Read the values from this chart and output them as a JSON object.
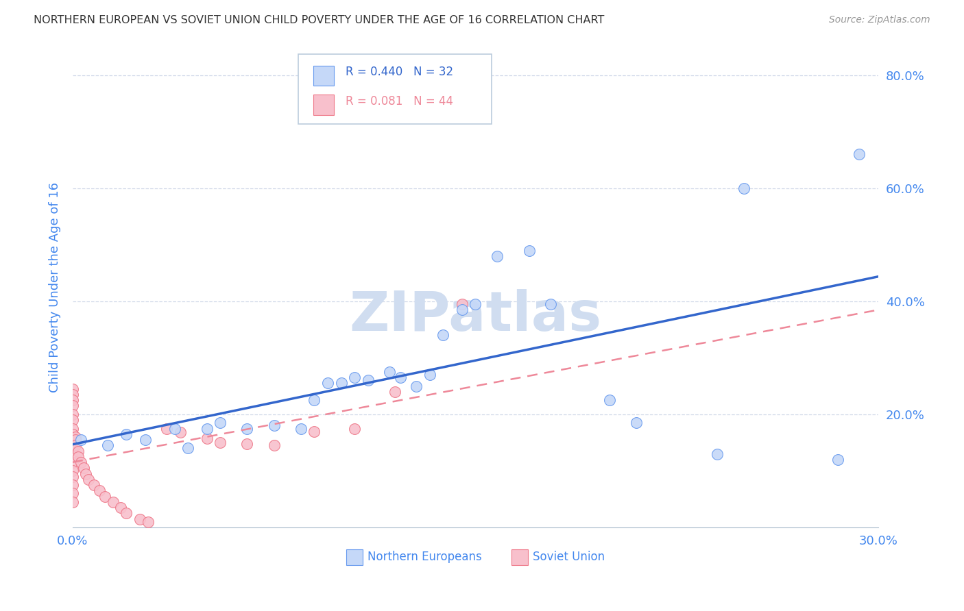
{
  "title": "NORTHERN EUROPEAN VS SOVIET UNION CHILD POVERTY UNDER THE AGE OF 16 CORRELATION CHART",
  "source": "Source: ZipAtlas.com",
  "ylabel": "Child Poverty Under the Age of 16",
  "xlim": [
    0.0,
    0.3
  ],
  "ylim": [
    0.0,
    0.85
  ],
  "xticks": [
    0.0,
    0.3
  ],
  "yticks": [
    0.2,
    0.4,
    0.6,
    0.8
  ],
  "background_color": "#ffffff",
  "grid_color": "#d0d8e8",
  "title_color": "#333333",
  "tick_color": "#4488ee",
  "northern_european_x": [
    0.003,
    0.013,
    0.02,
    0.027,
    0.038,
    0.043,
    0.05,
    0.055,
    0.065,
    0.075,
    0.085,
    0.09,
    0.095,
    0.1,
    0.105,
    0.11,
    0.118,
    0.122,
    0.128,
    0.133,
    0.138,
    0.145,
    0.15,
    0.158,
    0.17,
    0.178,
    0.2,
    0.21,
    0.24,
    0.25,
    0.285,
    0.293
  ],
  "northern_european_y": [
    0.155,
    0.145,
    0.165,
    0.155,
    0.175,
    0.14,
    0.175,
    0.185,
    0.175,
    0.18,
    0.175,
    0.225,
    0.255,
    0.255,
    0.265,
    0.26,
    0.275,
    0.265,
    0.25,
    0.27,
    0.34,
    0.385,
    0.395,
    0.48,
    0.49,
    0.395,
    0.225,
    0.185,
    0.13,
    0.6,
    0.12,
    0.66
  ],
  "soviet_union_x": [
    0.0,
    0.0,
    0.0,
    0.0,
    0.0,
    0.0,
    0.0,
    0.0,
    0.0,
    0.0,
    0.0,
    0.0,
    0.0,
    0.0,
    0.0,
    0.0,
    0.0,
    0.001,
    0.001,
    0.001,
    0.002,
    0.002,
    0.003,
    0.004,
    0.005,
    0.006,
    0.008,
    0.01,
    0.012,
    0.015,
    0.018,
    0.02,
    0.025,
    0.028,
    0.035,
    0.04,
    0.05,
    0.055,
    0.065,
    0.075,
    0.09,
    0.105,
    0.12,
    0.145
  ],
  "soviet_union_y": [
    0.245,
    0.235,
    0.225,
    0.215,
    0.2,
    0.19,
    0.175,
    0.165,
    0.15,
    0.14,
    0.125,
    0.115,
    0.1,
    0.09,
    0.075,
    0.06,
    0.045,
    0.16,
    0.155,
    0.145,
    0.135,
    0.125,
    0.115,
    0.105,
    0.095,
    0.085,
    0.075,
    0.065,
    0.055,
    0.045,
    0.035,
    0.025,
    0.015,
    0.01,
    0.175,
    0.168,
    0.158,
    0.15,
    0.148,
    0.145,
    0.17,
    0.175,
    0.24,
    0.395
  ],
  "northern_european_color": "#c5d8f8",
  "northern_european_edge_color": "#6699ee",
  "soviet_union_color": "#f8c0cc",
  "soviet_union_edge_color": "#ee7788",
  "ne_R": 0.44,
  "ne_N": 32,
  "su_R": 0.081,
  "su_N": 44,
  "ne_line_color": "#3366cc",
  "su_line_color": "#ee8899",
  "watermark": "ZIPatlas",
  "watermark_color": "#d0ddf0"
}
